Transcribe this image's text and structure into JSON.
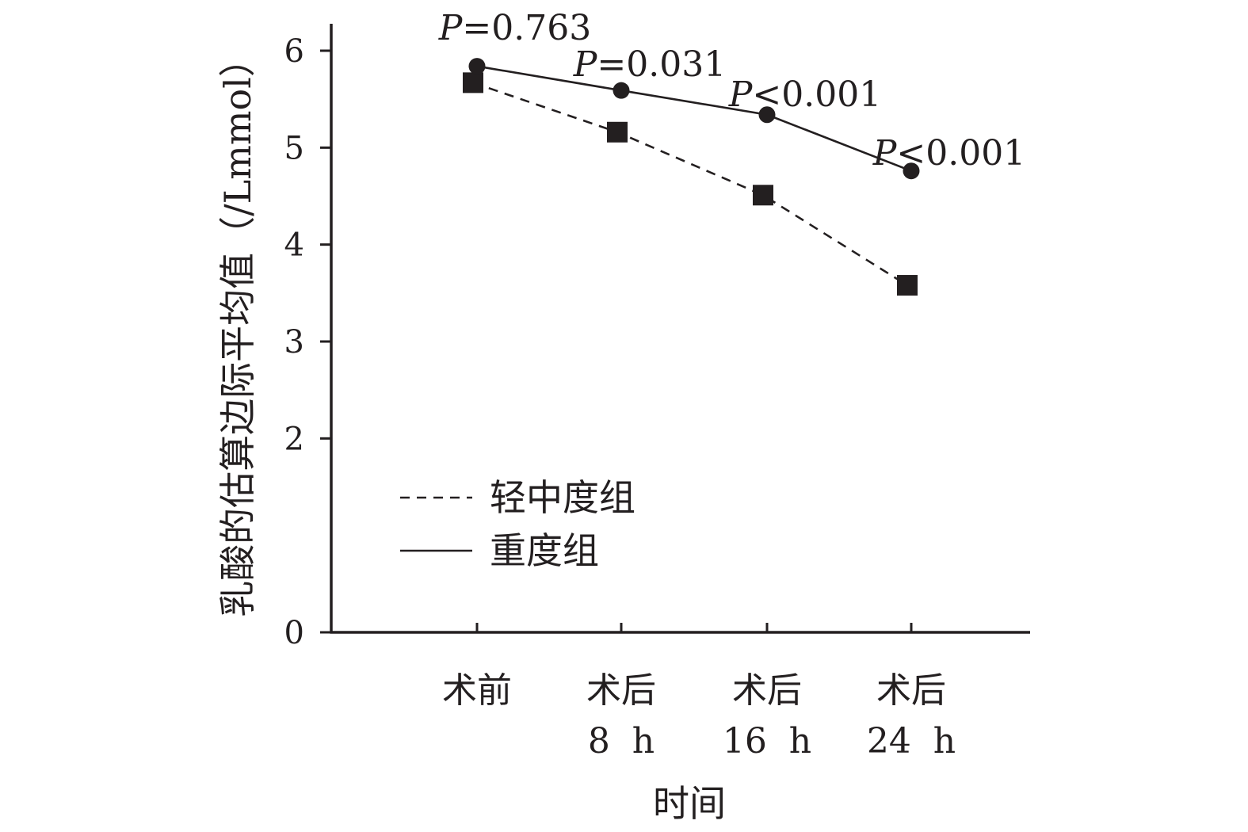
{
  "chart_data": {
    "type": "line",
    "categories": [
      [
        "术前",
        ""
      ],
      [
        "术后",
        "8 h"
      ],
      [
        "术后",
        "16 h"
      ],
      [
        "术后",
        "24 h"
      ]
    ],
    "xlabel": "时间",
    "ylabel": "乳酸的估算边际平均值（/Lmmol）",
    "ylim": [
      0,
      6
    ],
    "yticks": [
      "0",
      "2",
      "3",
      "4",
      "5",
      "6"
    ],
    "grid": false,
    "legend_position": "center-left",
    "series": [
      {
        "name": "轻中度组",
        "values": [
          5.67,
          5.16,
          4.51,
          3.58
        ],
        "line_style": "dashed",
        "marker": "square",
        "color": "#231f20"
      },
      {
        "name": "重度组",
        "values": [
          5.84,
          5.59,
          5.34,
          4.76
        ],
        "line_style": "solid",
        "marker": "circle",
        "color": "#231f20"
      }
    ],
    "annotations": [
      {
        "category_index": 0,
        "label": "P",
        "text": "=0.763"
      },
      {
        "category_index": 1,
        "label": "P",
        "text": "=0.031"
      },
      {
        "category_index": 2,
        "label": "P",
        "text": "<0.001"
      },
      {
        "category_index": 3,
        "label": "P",
        "text": "<0.001"
      }
    ]
  }
}
